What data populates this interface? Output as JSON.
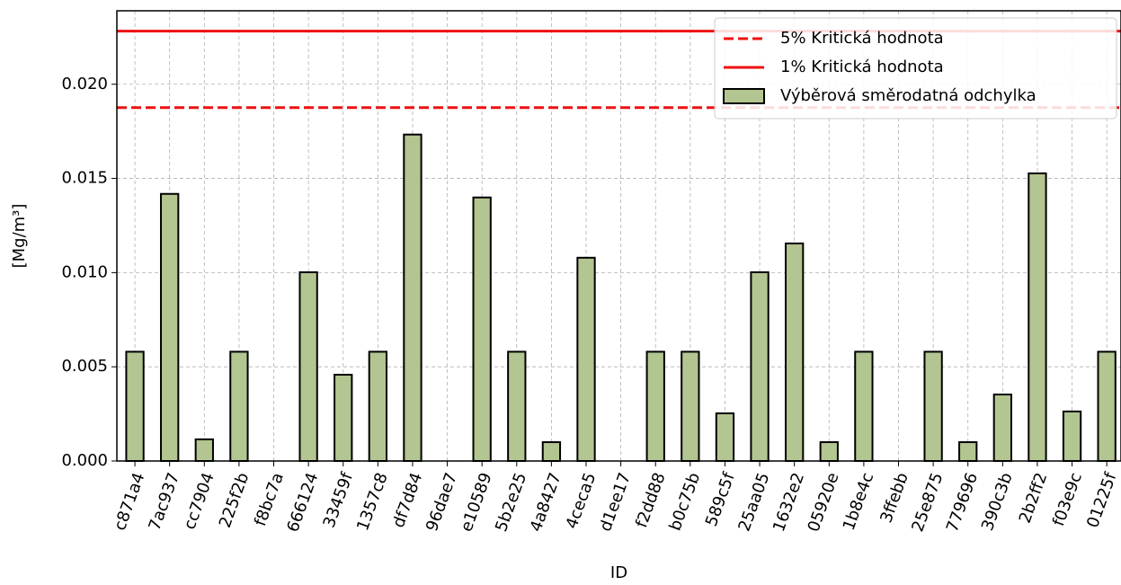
{
  "chart_data": {
    "type": "bar",
    "ylabel": "[Mg/m³]",
    "xlabel": "ID",
    "categories": [
      "c871a4",
      "7ac937",
      "cc7904",
      "225f2b",
      "f8bc7a",
      "666124",
      "33459f",
      "1357c8",
      "df7d84",
      "96dae7",
      "e10589",
      "5b2e25",
      "4a8427",
      "4ceca5",
      "d1ee17",
      "f2dd88",
      "b0c75b",
      "589c5f",
      "25aa05",
      "1632e2",
      "05920e",
      "1b8e4c",
      "3ffebb",
      "25e875",
      "779696",
      "390c3b",
      "2b2ff2",
      "f03e9c",
      "01225f"
    ],
    "series": [
      {
        "name": "Výběrová směrodatná odchylka",
        "color": "#b3c590",
        "values": [
          0.0058,
          0.01418,
          0.00115,
          0.0058,
          0,
          0.01002,
          0.00458,
          0.0058,
          0.01733,
          0,
          0.01399,
          0.0058,
          0.001,
          0.01079,
          0,
          0.0058,
          0.0058,
          0.00253,
          0.01002,
          0.01155,
          0.001,
          0.0058,
          0,
          0.0058,
          0.001,
          0.00353,
          0.01527,
          0.00263,
          0.0058
        ]
      }
    ],
    "hlines": [
      {
        "name": "5% Kritická hodnota",
        "value": 0.01876,
        "color": "#ee1111",
        "linestyle": "dashed"
      },
      {
        "name": "1% Kritická hodnota",
        "value": 0.02282,
        "color": "#ee1111",
        "linestyle": "solid"
      }
    ],
    "ylim": [
      0,
      0.0239
    ],
    "yticks": [
      {
        "value": 0,
        "label": "0.000"
      },
      {
        "value": 0.005,
        "label": "0.005"
      },
      {
        "value": 0.01,
        "label": "0.010"
      },
      {
        "value": 0.015,
        "label": "0.015"
      },
      {
        "value": 0.02,
        "label": "0.020"
      }
    ],
    "grid": true,
    "legend": "upper right"
  }
}
